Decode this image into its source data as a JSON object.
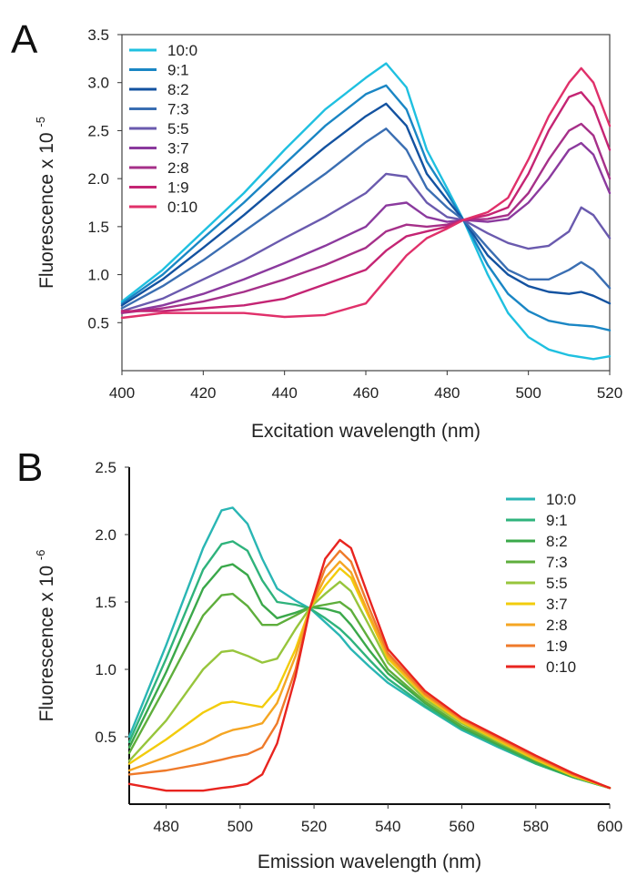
{
  "chart_data": [
    {
      "type": "line",
      "panel": "A",
      "xlabel": "Excitation wavelength (nm)",
      "ylabel_main": "Fluorescence x 10",
      "ylabel_exp": "-5",
      "xlim": [
        400,
        520
      ],
      "ylim": [
        0,
        3.5
      ],
      "xticks": [
        "400",
        "420",
        "440",
        "460",
        "480",
        "500",
        "520"
      ],
      "yticks": [
        "0.5",
        "1.0",
        "1.5",
        "2.0",
        "2.5",
        "3.0",
        "3.5"
      ],
      "legend_position": "top-left",
      "x": [
        400,
        410,
        420,
        430,
        440,
        450,
        460,
        465,
        470,
        475,
        480,
        484,
        490,
        495,
        500,
        505,
        510,
        513,
        516,
        520
      ],
      "series": [
        {
          "name": "10:0",
          "color": "#1fc0e0",
          "values": [
            0.72,
            1.05,
            1.45,
            1.85,
            2.3,
            2.72,
            3.05,
            3.2,
            2.95,
            2.3,
            1.9,
            1.57,
            1.0,
            0.6,
            0.35,
            0.22,
            0.16,
            0.14,
            0.12,
            0.15
          ]
        },
        {
          "name": "9:1",
          "color": "#1a86c4",
          "values": [
            0.7,
            1.0,
            1.38,
            1.75,
            2.15,
            2.55,
            2.88,
            2.97,
            2.72,
            2.18,
            1.85,
            1.57,
            1.1,
            0.8,
            0.62,
            0.52,
            0.48,
            0.47,
            0.46,
            0.42
          ]
        },
        {
          "name": "8:2",
          "color": "#1352a0",
          "values": [
            0.68,
            0.95,
            1.28,
            1.62,
            1.98,
            2.33,
            2.65,
            2.78,
            2.55,
            2.05,
            1.78,
            1.57,
            1.2,
            1.0,
            0.88,
            0.82,
            0.8,
            0.82,
            0.78,
            0.7
          ]
        },
        {
          "name": "7:3",
          "color": "#3a6eb2",
          "values": [
            0.65,
            0.88,
            1.15,
            1.45,
            1.75,
            2.05,
            2.38,
            2.52,
            2.3,
            1.9,
            1.7,
            1.57,
            1.28,
            1.05,
            0.95,
            0.95,
            1.05,
            1.13,
            1.05,
            0.86
          ]
        },
        {
          "name": "5:5",
          "color": "#6a5aae",
          "values": [
            0.62,
            0.75,
            0.95,
            1.15,
            1.38,
            1.6,
            1.85,
            2.05,
            2.02,
            1.75,
            1.6,
            1.57,
            1.43,
            1.33,
            1.27,
            1.3,
            1.45,
            1.7,
            1.62,
            1.38
          ]
        },
        {
          "name": "3:7",
          "color": "#8b3a9e",
          "values": [
            0.6,
            0.68,
            0.8,
            0.95,
            1.12,
            1.3,
            1.5,
            1.72,
            1.75,
            1.6,
            1.55,
            1.57,
            1.55,
            1.58,
            1.75,
            2.0,
            2.3,
            2.37,
            2.25,
            1.85
          ]
        },
        {
          "name": "2:8",
          "color": "#a63089",
          "values": [
            0.6,
            0.65,
            0.72,
            0.82,
            0.95,
            1.1,
            1.28,
            1.45,
            1.52,
            1.5,
            1.52,
            1.57,
            1.58,
            1.62,
            1.85,
            2.2,
            2.5,
            2.57,
            2.45,
            2.0
          ]
        },
        {
          "name": "1:9",
          "color": "#c42473",
          "values": [
            0.62,
            0.62,
            0.65,
            0.68,
            0.75,
            0.9,
            1.05,
            1.25,
            1.4,
            1.45,
            1.5,
            1.57,
            1.62,
            1.7,
            2.05,
            2.5,
            2.85,
            2.9,
            2.75,
            2.3
          ]
        },
        {
          "name": "0:10",
          "color": "#e0306a",
          "values": [
            0.55,
            0.6,
            0.6,
            0.6,
            0.56,
            0.58,
            0.7,
            0.95,
            1.2,
            1.38,
            1.48,
            1.57,
            1.65,
            1.8,
            2.2,
            2.65,
            3.0,
            3.15,
            3.0,
            2.55
          ]
        }
      ]
    },
    {
      "type": "line",
      "panel": "B",
      "xlabel": "Emission wavelength (nm)",
      "ylabel_main": "Fluorescence x 10",
      "ylabel_exp": "-6",
      "xlim": [
        470,
        600
      ],
      "ylim": [
        0,
        2.5
      ],
      "xticks": [
        "480",
        "500",
        "520",
        "540",
        "560",
        "580",
        "600"
      ],
      "yticks": [
        "0.5",
        "1.0",
        "1.5",
        "2.0",
        "2.5"
      ],
      "legend_position": "top-right",
      "x": [
        470,
        480,
        490,
        495,
        498,
        502,
        506,
        510,
        515,
        519,
        523,
        527,
        530,
        535,
        540,
        550,
        560,
        570,
        580,
        590,
        600
      ],
      "series": [
        {
          "name": "10:0",
          "color": "#2ab6b4",
          "values": [
            0.5,
            1.18,
            1.9,
            2.18,
            2.2,
            2.08,
            1.82,
            1.6,
            1.51,
            1.45,
            1.35,
            1.25,
            1.15,
            1.02,
            0.9,
            0.72,
            0.55,
            0.42,
            0.3,
            0.2,
            0.12
          ]
        },
        {
          "name": "9:1",
          "color": "#2fb37c",
          "values": [
            0.46,
            1.08,
            1.74,
            1.93,
            1.95,
            1.88,
            1.66,
            1.5,
            1.48,
            1.45,
            1.38,
            1.3,
            1.22,
            1.07,
            0.93,
            0.73,
            0.56,
            0.43,
            0.3,
            0.2,
            0.12
          ]
        },
        {
          "name": "8:2",
          "color": "#3aa84a",
          "values": [
            0.42,
            0.98,
            1.6,
            1.76,
            1.78,
            1.7,
            1.48,
            1.38,
            1.42,
            1.46,
            1.45,
            1.42,
            1.33,
            1.14,
            0.97,
            0.75,
            0.57,
            0.44,
            0.31,
            0.2,
            0.12
          ]
        },
        {
          "name": "7:3",
          "color": "#5eae3c",
          "values": [
            0.38,
            0.88,
            1.4,
            1.55,
            1.56,
            1.47,
            1.33,
            1.33,
            1.4,
            1.46,
            1.48,
            1.5,
            1.44,
            1.22,
            1.0,
            0.76,
            0.58,
            0.45,
            0.32,
            0.21,
            0.12
          ]
        },
        {
          "name": "5:5",
          "color": "#97c53c",
          "values": [
            0.32,
            0.62,
            1.0,
            1.13,
            1.14,
            1.1,
            1.05,
            1.08,
            1.3,
            1.46,
            1.56,
            1.65,
            1.58,
            1.32,
            1.05,
            0.78,
            0.6,
            0.46,
            0.33,
            0.21,
            0.12
          ]
        },
        {
          "name": "3:7",
          "color": "#f2cc0c",
          "values": [
            0.3,
            0.48,
            0.68,
            0.75,
            0.76,
            0.74,
            0.72,
            0.85,
            1.15,
            1.46,
            1.62,
            1.75,
            1.68,
            1.38,
            1.08,
            0.8,
            0.61,
            0.47,
            0.33,
            0.21,
            0.12
          ]
        },
        {
          "name": "2:8",
          "color": "#f5a623",
          "values": [
            0.25,
            0.35,
            0.45,
            0.52,
            0.55,
            0.57,
            0.6,
            0.75,
            1.1,
            1.46,
            1.68,
            1.8,
            1.72,
            1.4,
            1.1,
            0.81,
            0.62,
            0.48,
            0.34,
            0.22,
            0.12
          ]
        },
        {
          "name": "1:9",
          "color": "#ef7a2a",
          "values": [
            0.22,
            0.25,
            0.3,
            0.33,
            0.35,
            0.37,
            0.42,
            0.6,
            1.0,
            1.46,
            1.75,
            1.88,
            1.8,
            1.45,
            1.12,
            0.82,
            0.63,
            0.49,
            0.35,
            0.22,
            0.12
          ]
        },
        {
          "name": "0:10",
          "color": "#e8241f",
          "values": [
            0.15,
            0.1,
            0.1,
            0.12,
            0.13,
            0.15,
            0.22,
            0.45,
            0.95,
            1.46,
            1.82,
            1.96,
            1.9,
            1.52,
            1.15,
            0.84,
            0.64,
            0.5,
            0.36,
            0.23,
            0.12
          ]
        }
      ]
    }
  ]
}
